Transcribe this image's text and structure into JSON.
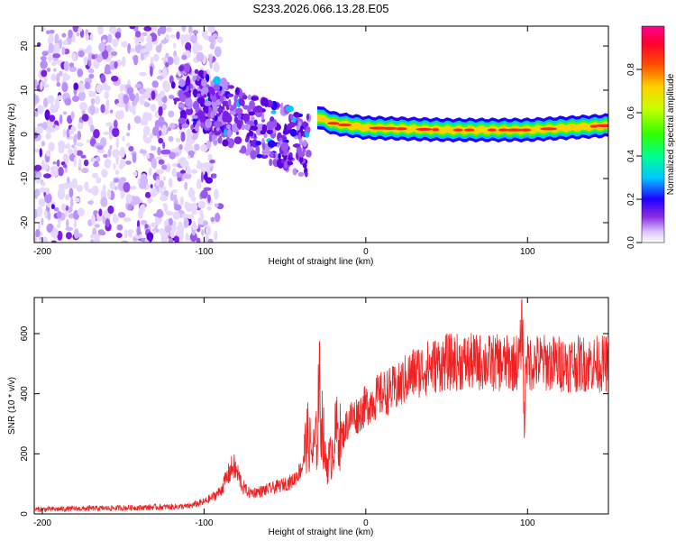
{
  "title": "S233.2026.066.13.28.E05",
  "chart_data": [
    {
      "type": "heatmap",
      "title": "S233.2026.066.13.28.E05",
      "xlabel": "Height of straight line (km)",
      "ylabel": "Frequency (Hz)",
      "xlim": [
        -205,
        150
      ],
      "ylim": [
        -24.5,
        24.5
      ],
      "xticks": [
        -200,
        -100,
        0,
        100
      ],
      "yticks": [
        -20,
        -10,
        0,
        10,
        20
      ],
      "colorbar": {
        "label": "Normalized spectral amplitude",
        "range": [
          0.0,
          1.0
        ],
        "ticks": [
          "0.0",
          "0.2",
          "0.4",
          "0.6",
          "0.8"
        ],
        "tick_values": [
          0.0,
          0.2,
          0.4,
          0.6,
          0.8
        ]
      },
      "features": [
        {
          "name": "diffuse noise",
          "x_range": [
            -205,
            -100
          ],
          "freq_range": [
            -24.5,
            24.5
          ],
          "amplitude": 0.1
        },
        {
          "name": "descending fragment",
          "x_range": [
            -115,
            -35
          ],
          "freq_range": [
            -12,
            12
          ],
          "amplitude": 0.3
        },
        {
          "name": "carrier tone",
          "x_range": [
            -30,
            150
          ],
          "freq_center": [
            [
              -30,
              4
            ],
            [
              -20,
              2.5
            ],
            [
              0,
              1.5
            ],
            [
              50,
              1
            ],
            [
              100,
              1
            ],
            [
              150,
              2
            ]
          ],
          "amplitude": 0.9
        }
      ]
    },
    {
      "type": "line",
      "xlabel": "Height of straight line (km)",
      "ylabel": "SNR (10 * v/v)",
      "xlim": [
        -205,
        150
      ],
      "ylim": [
        0,
        720
      ],
      "xticks": [
        -200,
        -100,
        0,
        100
      ],
      "yticks": [
        0,
        200,
        400,
        600
      ],
      "series": [
        {
          "name": "SNR",
          "color": "#ee2222",
          "x": [
            -205,
            -150,
            -110,
            -100,
            -95,
            -90,
            -85,
            -82,
            -79,
            -76,
            -72,
            -65,
            -55,
            -45,
            -40,
            -36,
            -33,
            -30,
            -29,
            -28,
            -27,
            -25,
            -22,
            -18,
            -15,
            -10,
            -5,
            0,
            5,
            10,
            20,
            25,
            30,
            40,
            50,
            70,
            90,
            95,
            97,
            98,
            99,
            100,
            105,
            120,
            150
          ],
          "values": [
            15,
            20,
            25,
            40,
            55,
            75,
            130,
            160,
            130,
            90,
            70,
            75,
            90,
            110,
            150,
            260,
            200,
            250,
            480,
            300,
            320,
            170,
            180,
            280,
            250,
            320,
            330,
            360,
            380,
            400,
            420,
            450,
            470,
            490,
            505,
            505,
            500,
            510,
            650,
            240,
            560,
            500,
            505,
            500,
            500
          ]
        }
      ]
    }
  ],
  "colors": {
    "line": "#ee2222",
    "noise": "#9a55f0",
    "axis": "#000000"
  }
}
